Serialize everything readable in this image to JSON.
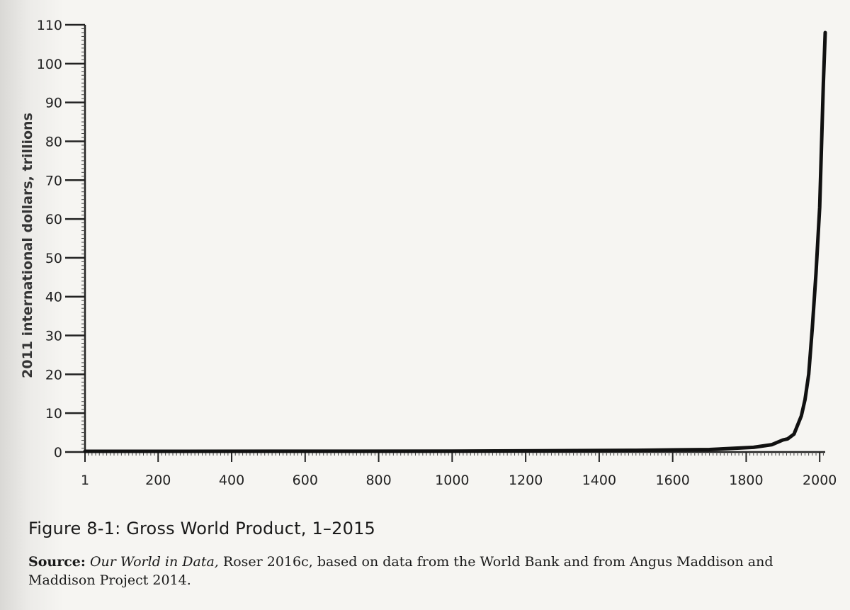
{
  "figure": {
    "caption": "Figure 8-1: Gross World Product, 1–2015",
    "source_label": "Source:",
    "source_title": "Our World in Data,",
    "source_text": " Roser 2016c, based on data from the World Bank and from Angus Maddison and Maddison Project 2014."
  },
  "chart_data": {
    "type": "line",
    "title": "",
    "xlabel": "",
    "ylabel": "2011 international dollars, trillions",
    "xlim": [
      1,
      2015
    ],
    "ylim": [
      0,
      110
    ],
    "x_ticks": [
      1,
      200,
      400,
      600,
      800,
      1000,
      1200,
      1400,
      1600,
      1800,
      2000
    ],
    "x_tick_labels": [
      "1",
      "200",
      "400",
      "600",
      "800",
      "1000",
      "1200",
      "1400",
      "1600",
      "1800",
      "2000"
    ],
    "y_ticks": [
      0,
      10,
      20,
      30,
      40,
      50,
      60,
      70,
      80,
      90,
      100,
      110
    ],
    "y_tick_labels": [
      "0",
      "10",
      "20",
      "30",
      "40",
      "50",
      "60",
      "70",
      "80",
      "90",
      "100",
      "110"
    ],
    "grid": false,
    "series": [
      {
        "x": [
          1,
          1000,
          1500,
          1600,
          1700,
          1820,
          1870,
          1900,
          1913,
          1930,
          1950,
          1960,
          1970,
          1980,
          1990,
          2000,
          2010,
          2015
        ],
        "y": [
          0.18,
          0.21,
          0.43,
          0.55,
          0.64,
          1.2,
          1.9,
          3.1,
          3.4,
          4.6,
          9.3,
          13.5,
          20.0,
          32.0,
          46.0,
          63.0,
          95.0,
          108.0
        ],
        "color": "#111111"
      }
    ]
  }
}
